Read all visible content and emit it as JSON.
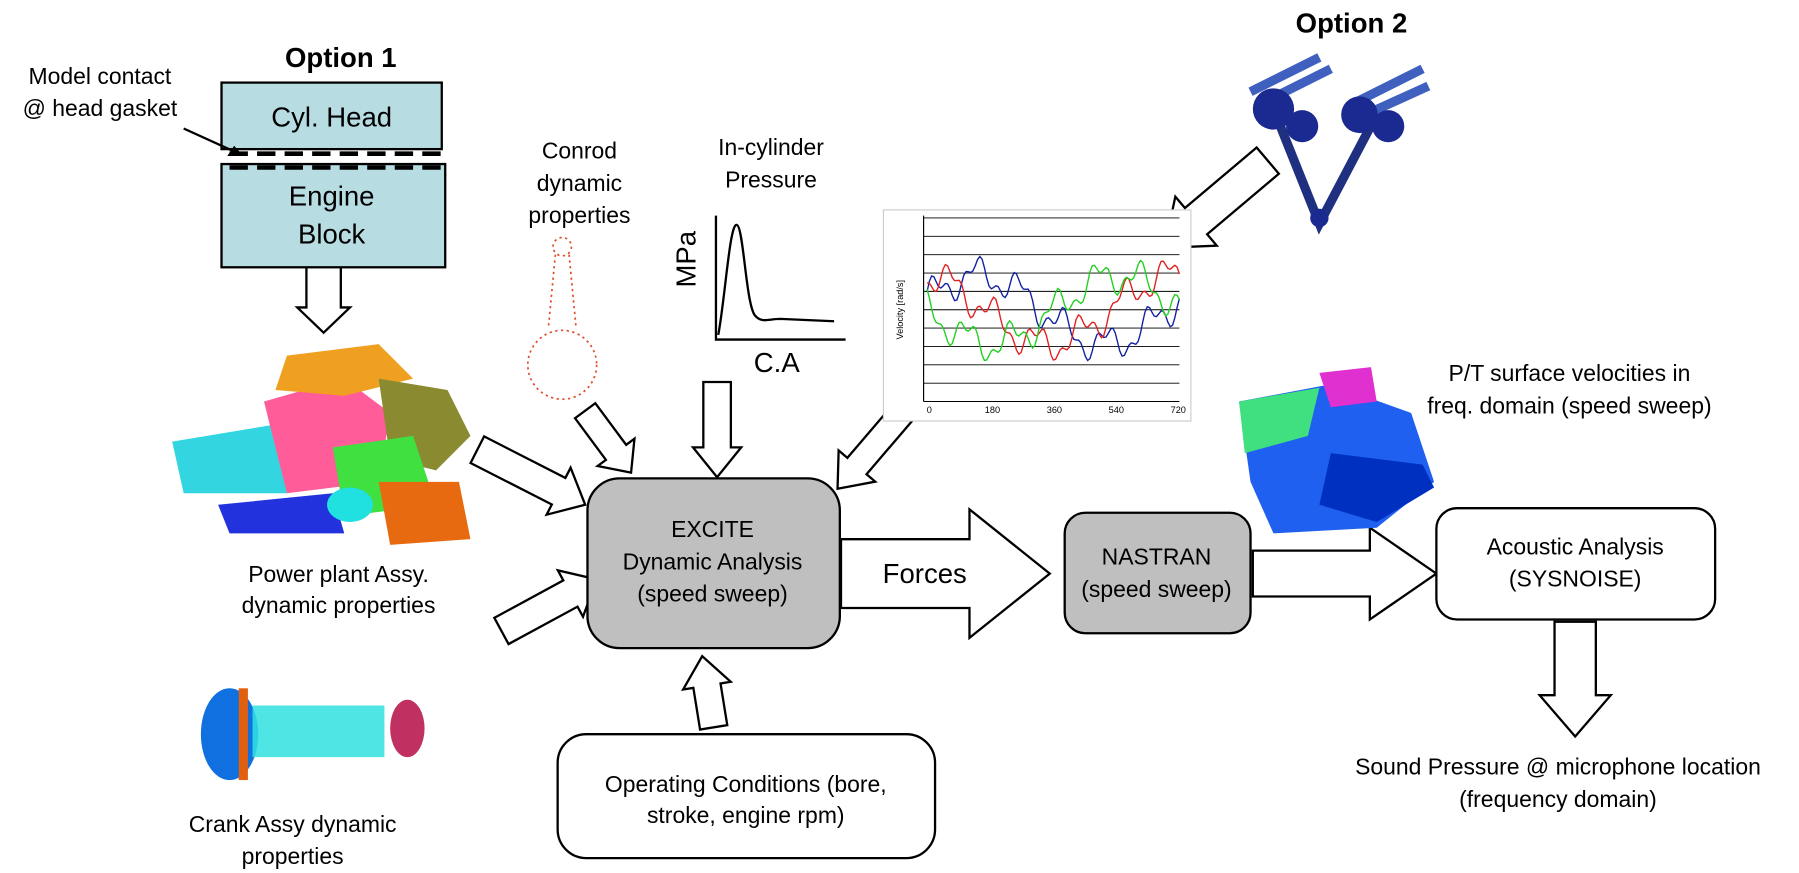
{
  "option1": {
    "title": "Option 1",
    "contact_note": [
      "Model contact",
      "@ head gasket"
    ],
    "cyl_head": "Cyl. Head",
    "engine_block": [
      "Engine",
      "Block"
    ]
  },
  "option2": {
    "title": "Option 2"
  },
  "inputs": {
    "powerplant": [
      "Power plant Assy.",
      "dynamic properties"
    ],
    "crank": [
      "Crank Assy dynamic",
      "properties"
    ],
    "conrod": [
      "Conrod",
      "dynamic",
      "properties"
    ],
    "pressure": {
      "title": [
        "In-cylinder",
        "Pressure"
      ],
      "y_label": "MPa",
      "x_label": "C.A"
    },
    "velocity_chart": {
      "y_label": "Velocity [rad/s]",
      "x_ticks": [
        "0",
        "180",
        "360",
        "540",
        "720"
      ]
    }
  },
  "nodes": {
    "excite": [
      "EXCITE",
      "Dynamic Analysis",
      "(speed sweep)"
    ],
    "nastran": [
      "NASTRAN",
      "(speed sweep)"
    ],
    "acoustic": [
      "Acoustic Analysis",
      "(SYSNOISE)"
    ],
    "operating": [
      "Operating Conditions (bore,",
      "stroke, engine rpm)"
    ]
  },
  "edges": {
    "forces": "Forces"
  },
  "outputs": {
    "surface_velocities": [
      "P/T surface velocities in",
      "freq. domain (speed sweep)"
    ],
    "sound_pressure": [
      "Sound Pressure @ microphone location",
      "(frequency domain)"
    ]
  }
}
